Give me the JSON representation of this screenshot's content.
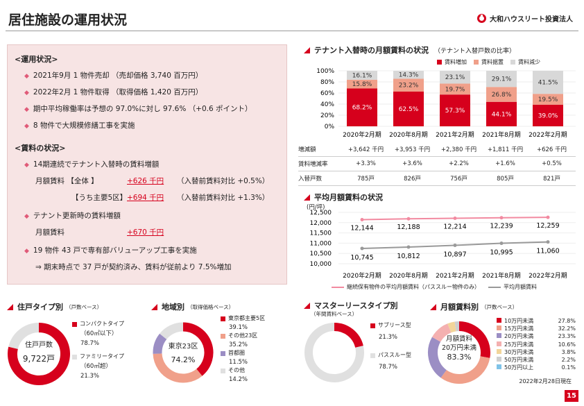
{
  "page": {
    "title": "居住施設の運用状況",
    "logo": "大和ハウスリート投資法人",
    "number": "15"
  },
  "operation": {
    "heading": "<運用状況>",
    "items": [
      "2021年9月  1 物件売却  （売却価格  3,740 百万円）",
      "2022年2月  1 物件取得  （取得価格  1,420 百万円）",
      "期中平均稼働率は予想の 97.0%に対し 97.6%  （+0.6 ポイント）",
      "8 物件で大規模修繕工事を実施"
    ]
  },
  "rent": {
    "heading": "<賃料の状況>",
    "item1": "14期連続でテナント入替時の賃料増額",
    "row1_label": "月額賃料 【全体 】",
    "row1_value": "+626 千円",
    "row1_note": "（入替前賃料対比  +0.5%）",
    "row2_label": "【うち主要5区】",
    "row2_value": "+694 千円",
    "row2_note": "（入替前賃料対比  +1.3%）",
    "item2": "テナント更新時の賃料増額",
    "row3_label": "月額賃料",
    "row3_value": "+670 千円",
    "item3": "19 物件 43 戸で専有部バリューアップ工事を実施",
    "item3_sub": "⇒ 期末時点で 37 戸が契約済み、賃料が従前より 7.5%増加"
  },
  "replacement": {
    "title": "テナント入替時の月額賃料の状況",
    "note": "（テナント入替戸数の比率）",
    "legend": [
      "賃料増加",
      "賃料据置",
      "賃料減少"
    ],
    "colors": {
      "increase": "#d6001c",
      "flat": "#f0a08a",
      "decrease": "#d8d8d8"
    },
    "table": {
      "labels": [
        "増減額",
        "賃料増減率",
        "入替戸数"
      ],
      "rows": [
        [
          "+3,642 千円",
          "+3,953 千円",
          "+2,380 千円",
          "+1,811 千円",
          "+626 千円"
        ],
        [
          "+3.3%",
          "+3.6%",
          "+2.2%",
          "+1.6%",
          "+0.5%"
        ],
        [
          "785戸",
          "826戸",
          "756戸",
          "805戸",
          "821戸"
        ]
      ]
    }
  },
  "avg_rent": {
    "title": "平均月額賃料の状況",
    "unit": "(円/坪)",
    "legend": [
      "継続保有物件の平均月額賃料（パススルー物件のみ）",
      "平均月額賃料"
    ]
  },
  "pies": {
    "type": {
      "title": "住戸タイプ別",
      "note": "（戸数ベース）",
      "center": [
        "住戸戸数",
        "9,722戸"
      ],
      "items": [
        {
          "label": "コンパクトタイプ",
          "sub": "（60㎡以下）",
          "pct": "78.7%"
        },
        {
          "label": "ファミリータイプ",
          "sub": "（60㎡超）",
          "pct": "21.3%"
        }
      ]
    },
    "area": {
      "title": "地域別",
      "note": "（取得価格ベース）",
      "center": [
        "東京23区",
        "74.2%"
      ],
      "items": [
        {
          "label": "東京都主要5区",
          "pct": "39.1%"
        },
        {
          "label": "その他23区",
          "pct": "35.2%"
        },
        {
          "label": "首都圏",
          "pct": "11.5%"
        },
        {
          "label": "その他",
          "pct": "14.2%"
        }
      ]
    },
    "master": {
      "title": "マスターリースタイプ別",
      "note": "（年間賃料ベース）",
      "items": [
        {
          "label": "サブリース型",
          "pct": "21.3%"
        },
        {
          "label": "パススルー型",
          "pct": "78.7%"
        }
      ]
    },
    "rent": {
      "title": "月額賃料別",
      "note": "（戸数ベース）",
      "center": [
        "月額賃料",
        "20万円未満",
        "83.3%"
      ],
      "items": [
        {
          "label": "10万円未満",
          "pct": "27.8%"
        },
        {
          "label": "15万円未満",
          "pct": "32.2%"
        },
        {
          "label": "20万円未満",
          "pct": "23.3%"
        },
        {
          "label": "25万円未満",
          "pct": "10.6%"
        },
        {
          "label": "30万円未満",
          "pct": "3.8%"
        },
        {
          "label": "50万円未満",
          "pct": "2.2%"
        },
        {
          "label": "50万円以上",
          "pct": "0.1%"
        }
      ],
      "date": "2022年2月28日現在"
    }
  },
  "chart_data": [
    {
      "type": "bar",
      "title": "テナント入替時の月額賃料の状況",
      "stacked": true,
      "categories": [
        "2020年2月期",
        "2020年8月期",
        "2021年2月期",
        "2021年8月期",
        "2022年2月期"
      ],
      "series": [
        {
          "name": "賃料増加",
          "values": [
            68.2,
            62.5,
            57.3,
            44.1,
            39.0
          ]
        },
        {
          "name": "賃料据置",
          "values": [
            15.8,
            23.2,
            19.7,
            26.8,
            19.5
          ]
        },
        {
          "name": "賃料減少",
          "values": [
            16.1,
            14.3,
            23.1,
            29.1,
            41.5
          ]
        }
      ],
      "yticks": [
        "0%",
        "20%",
        "40%",
        "60%",
        "80%",
        "100%"
      ],
      "ylim": [
        0,
        100
      ]
    },
    {
      "type": "line",
      "title": "平均月額賃料の状況",
      "ylabel": "(円/坪)",
      "categories": [
        "2020年2月期",
        "2020年8月期",
        "2021年2月期",
        "2021年8月期",
        "2022年2月期"
      ],
      "series": [
        {
          "name": "継続保有物件の平均月額賃料（パススルー物件のみ）",
          "values": [
            12144,
            12188,
            12214,
            12239,
            12259
          ]
        },
        {
          "name": "平均月額賃料",
          "values": [
            10745,
            10812,
            10897,
            10995,
            11060
          ]
        }
      ],
      "labels": [
        [
          "12,144",
          "12,188",
          "12,214",
          "12,239",
          "12,259"
        ],
        [
          "10,745",
          "10,812",
          "10,897",
          "10,995",
          "11,060"
        ]
      ],
      "yticks": [
        "10,000",
        "10,500",
        "11,000",
        "11,500",
        "12,000",
        "12,500"
      ],
      "ylim": [
        10000,
        12500
      ]
    },
    {
      "type": "pie",
      "title": "住戸タイプ別",
      "values": [
        78.7,
        21.3
      ],
      "labels": [
        "コンパクトタイプ",
        "ファミリータイプ"
      ]
    },
    {
      "type": "pie",
      "title": "地域別",
      "values": [
        39.1,
        35.2,
        11.5,
        14.2
      ],
      "labels": [
        "東京都主要5区",
        "その他23区",
        "首都圏",
        "その他"
      ]
    },
    {
      "type": "pie",
      "title": "マスターリースタイプ別",
      "values": [
        21.3,
        78.7
      ],
      "labels": [
        "サブリース型",
        "パススルー型"
      ]
    },
    {
      "type": "pie",
      "title": "月額賃料別",
      "values": [
        27.8,
        32.2,
        23.3,
        10.6,
        3.8,
        2.2,
        0.1
      ],
      "labels": [
        "10万円未満",
        "15万円未満",
        "20万円未満",
        "25万円未満",
        "30万円未満",
        "50万円未満",
        "50万円以上"
      ]
    }
  ]
}
